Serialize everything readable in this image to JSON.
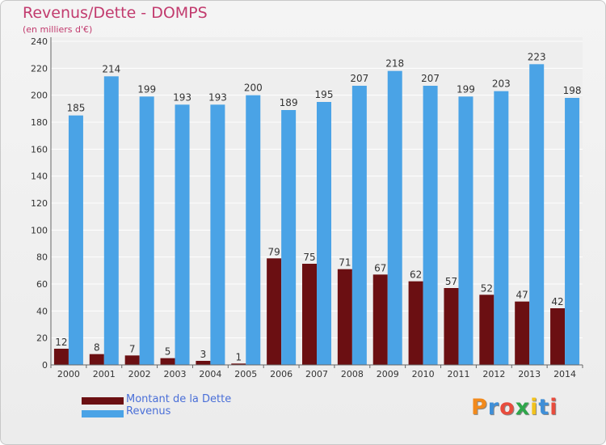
{
  "title": "Revenus/Dette - DOMPS",
  "subtitle": "(en milliers d'€)",
  "logo": {
    "text": "Proxiti",
    "letters": [
      "P",
      "r",
      "o",
      "x",
      "i",
      "t",
      "i"
    ],
    "colors": [
      "#f28a1c",
      "#3f8fd8",
      "#e84c3d",
      "#2ea64a",
      "#f2c21c",
      "#3f8fd8",
      "#e84c3d"
    ]
  },
  "colors": {
    "debt": "#6b0f12",
    "revenue": "#4aa3e6",
    "title": "#c23b6e",
    "legend_text": "#4a6fd8"
  },
  "chart_data": {
    "type": "bar",
    "categories": [
      "2000",
      "2001",
      "2002",
      "2003",
      "2004",
      "2005",
      "2006",
      "2007",
      "2008",
      "2009",
      "2010",
      "2011",
      "2012",
      "2013",
      "2014"
    ],
    "series": [
      {
        "name": "Montant de la Dette",
        "values": [
          12,
          8,
          7,
          5,
          3,
          1,
          79,
          75,
          71,
          67,
          62,
          57,
          52,
          47,
          42
        ]
      },
      {
        "name": "Revenus",
        "values": [
          185,
          214,
          199,
          193,
          193,
          200,
          189,
          195,
          207,
          218,
          207,
          199,
          203,
          223,
          198
        ]
      }
    ],
    "ylim": [
      0,
      240
    ],
    "yticks": [
      "0",
      "20",
      "40",
      "60",
      "80",
      "100",
      "120",
      "140",
      "160",
      "180",
      "200",
      "220",
      "240"
    ],
    "grid": true,
    "legend": "bottom-left"
  }
}
